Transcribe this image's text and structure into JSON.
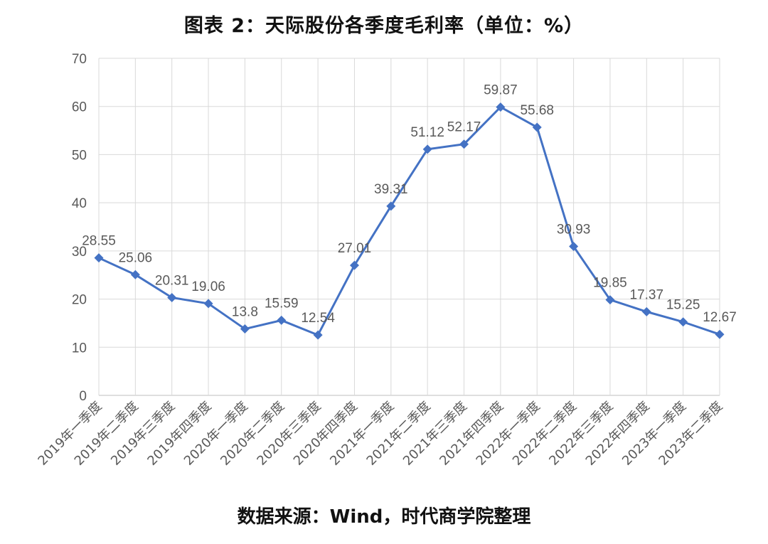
{
  "title": "图表 2：天际股份各季度毛利率（单位：%）",
  "source": "数据来源：Wind，时代商学院整理",
  "chart_data": {
    "type": "line",
    "categories": [
      "2019年一季度",
      "2019年二季度",
      "2019年三季度",
      "2019年四季度",
      "2020年一季度",
      "2020年二季度",
      "2020年三季度",
      "2020年四季度",
      "2021年一季度",
      "2021年二季度",
      "2021年三季度",
      "2021年四季度",
      "2022年一季度",
      "2022年二季度",
      "2022年三季度",
      "2022年四季度",
      "2023年一季度",
      "2023年二季度"
    ],
    "values": [
      28.55,
      25.06,
      20.31,
      19.06,
      13.8,
      15.59,
      12.54,
      27.01,
      39.31,
      51.12,
      52.17,
      59.87,
      55.68,
      30.93,
      19.85,
      17.37,
      15.25,
      12.67
    ],
    "data_labels": [
      "28.55",
      "25.06",
      "20.31",
      "19.06",
      "13.8",
      "15.59",
      "12.54",
      "27.01",
      "39.31",
      "51.12",
      "52.17",
      "59.87",
      "55.68",
      "30.93",
      "19.85",
      "17.37",
      "15.25",
      "12.67"
    ],
    "y_ticks": [
      "0",
      "10",
      "20",
      "30",
      "40",
      "50",
      "60",
      "70"
    ],
    "ylim": [
      0,
      70
    ],
    "grid": true,
    "legend": "none",
    "color": "#4472C4"
  }
}
